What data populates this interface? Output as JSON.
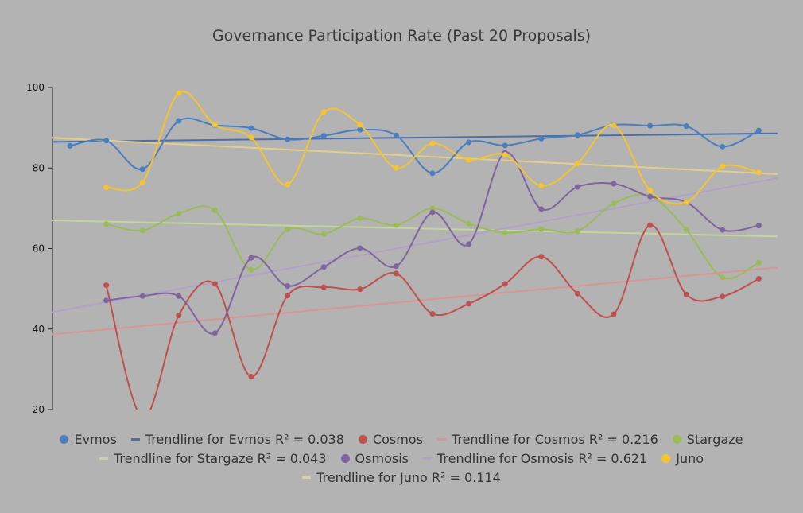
{
  "chart_data": {
    "type": "line",
    "title": "Governance Participation Rate (Past 20 Proposals)",
    "xlabel": "",
    "ylabel": "",
    "ylim": [
      20,
      100
    ],
    "yticks": [
      20,
      40,
      60,
      80,
      100
    ],
    "grid": false,
    "legend_position": "bottom",
    "x": [
      1,
      2,
      3,
      4,
      5,
      6,
      7,
      8,
      9,
      10,
      11,
      12,
      13,
      14,
      15,
      16,
      17,
      18,
      19,
      20
    ],
    "series": [
      {
        "name": "Evmos",
        "color": "#4a7ebf",
        "values": [
          85.5,
          86.8,
          79.7,
          91.7,
          90.6,
          89.9,
          87.1,
          88.0,
          89.5,
          88.1,
          78.7,
          86.4,
          85.6,
          87.3,
          88.2,
          90.7,
          90.5,
          90.4,
          85.3,
          89.3
        ],
        "trend": {
          "label": "Trendline for Evmos R² = 0.038",
          "from": 86.5,
          "to": 88.6,
          "color": "#4a6fa8"
        }
      },
      {
        "name": "Cosmos",
        "color": "#c0504d",
        "values": [
          null,
          50.9,
          18.0,
          43.4,
          51.2,
          28.2,
          48.3,
          50.4,
          49.9,
          53.8,
          43.8,
          46.3,
          51.2,
          58.0,
          48.8,
          43.7,
          65.8,
          48.6,
          48.1,
          52.5
        ],
        "trend": {
          "label": "Trendline for Cosmos R² = 0.216",
          "from": 38.7,
          "to": 55.3,
          "color": "#d99594"
        }
      },
      {
        "name": "Stargaze",
        "color": "#9bbb59",
        "values": [
          null,
          66.1,
          64.5,
          68.7,
          69.5,
          54.7,
          64.7,
          63.6,
          67.5,
          65.8,
          70.0,
          66.2,
          63.9,
          64.8,
          64.3,
          71.2,
          73.0,
          64.7,
          52.8,
          56.5
        ],
        "trend": {
          "label": "Trendline for Stargaze R² = 0.043",
          "from": 67.0,
          "to": 63.0,
          "color": "#c3d69b"
        }
      },
      {
        "name": "Osmosis",
        "color": "#8064a2",
        "values": [
          null,
          47.1,
          48.2,
          48.2,
          39.0,
          57.7,
          50.7,
          55.4,
          60.1,
          55.6,
          69.0,
          61.1,
          83.8,
          69.8,
          75.3,
          76.1,
          72.9,
          71.5,
          64.6,
          65.7
        ],
        "trend": {
          "label": "Trendline for Osmosis R² = 0.621",
          "from": 44.2,
          "to": 77.5,
          "color": "#b2a1c7"
        }
      },
      {
        "name": "Juno",
        "color": "#f5c431",
        "values": [
          null,
          75.2,
          76.5,
          98.6,
          90.7,
          87.6,
          75.9,
          93.9,
          90.7,
          80.0,
          86.1,
          82.0,
          83.3,
          75.6,
          81.1,
          90.6,
          74.4,
          71.5,
          80.4,
          78.9
        ],
        "trend": {
          "label": "Trendline for Juno R² = 0.114",
          "from": 87.5,
          "to": 78.5,
          "color": "#e3cf8a"
        }
      }
    ]
  }
}
